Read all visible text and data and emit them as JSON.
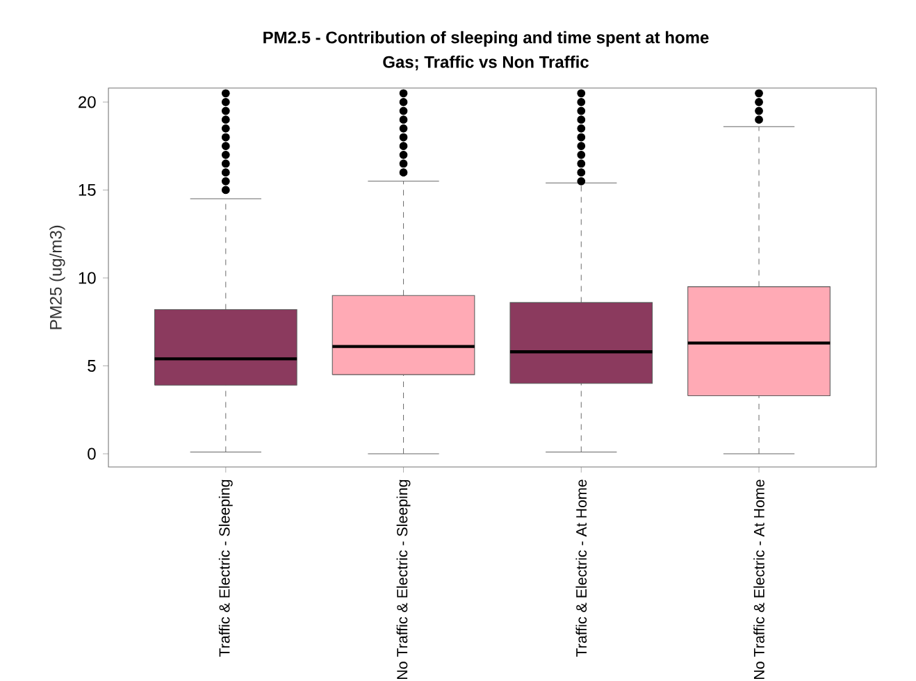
{
  "chart_data": {
    "type": "box",
    "title": "PM2.5 - Contribution of sleeping and time spent at home",
    "subtitle": "Gas; Traffic vs Non Traffic",
    "ylabel": "PM25 (ug/m3)",
    "categories": [
      "Traffic & Electric - Sleeping",
      "No Traffic & Electric - Sleeping",
      "Traffic & Electric - At Home",
      "No Traffic & Electric - At Home"
    ],
    "colors": [
      "#8b3a5e",
      "#ffaab5",
      "#8b3a5e",
      "#ffaab5"
    ],
    "boxes": [
      {
        "low": 0.1,
        "q1": 3.9,
        "median": 5.4,
        "q3": 8.2,
        "high": 14.5,
        "outliers": [
          15,
          15.5,
          16,
          16.5,
          17,
          17.5,
          18,
          18.5,
          19,
          19.5,
          20,
          20.5
        ]
      },
      {
        "low": 0.0,
        "q1": 4.5,
        "median": 6.1,
        "q3": 9.0,
        "high": 15.5,
        "outliers": [
          16,
          16.5,
          17,
          17.5,
          18,
          18.5,
          19,
          19.5,
          20,
          20.5
        ]
      },
      {
        "low": 0.1,
        "q1": 4.0,
        "median": 5.8,
        "q3": 8.6,
        "high": 15.4,
        "outliers": [
          15.5,
          16,
          16.5,
          17,
          17.5,
          18,
          18.5,
          19,
          19.5,
          20,
          20.5
        ]
      },
      {
        "low": 0.0,
        "q1": 3.3,
        "median": 6.3,
        "q3": 9.5,
        "high": 18.6,
        "outliers": [
          19,
          19.5,
          20,
          20.5
        ]
      }
    ],
    "ylim": [
      -0.75,
      20.8
    ],
    "yticks": [
      0,
      5,
      10,
      15,
      20
    ]
  }
}
